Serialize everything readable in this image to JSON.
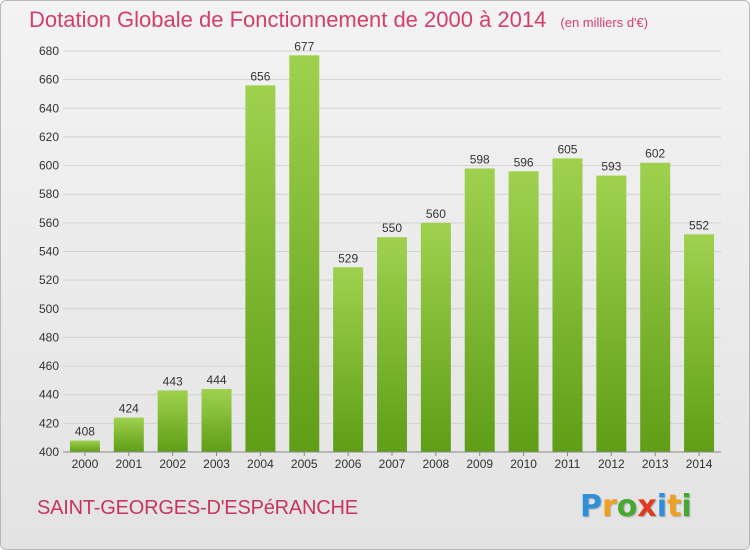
{
  "title": "Dotation Globale de Fonctionnement de 2000 à 2014",
  "unit_note": "(en milliers d'€)",
  "commune": "SAINT-GEORGES-D'ESPéRANCHE",
  "logo": {
    "text": "Proxiti",
    "letters": [
      {
        "char": "P",
        "color": "#2f8fd8"
      },
      {
        "char": "r",
        "color": "#f0a020"
      },
      {
        "char": "o",
        "color": "#46a833"
      },
      {
        "char": "x",
        "color": "#e03a1e"
      },
      {
        "char": "i",
        "color": "#2f8fd8"
      },
      {
        "char": "t",
        "color": "#f0a020"
      },
      {
        "char": "i",
        "color": "#46a833"
      }
    ]
  },
  "colors": {
    "title": "#d23f6b",
    "bar_top": "#9fd14f",
    "bar_bottom": "#5f9e16",
    "grid": "#d2d2d2"
  },
  "chart_data": {
    "type": "bar",
    "title": "Dotation Globale de Fonctionnement de 2000 à 2014",
    "subtitle": "(en milliers d'€)",
    "categories": [
      "2000",
      "2001",
      "2002",
      "2003",
      "2004",
      "2005",
      "2006",
      "2007",
      "2008",
      "2009",
      "2010",
      "2011",
      "2012",
      "2013",
      "2014"
    ],
    "values": [
      408,
      424,
      443,
      444,
      656,
      677,
      529,
      550,
      560,
      598,
      596,
      605,
      593,
      602,
      552
    ],
    "ylim": [
      400,
      680
    ],
    "yticks": [
      400,
      420,
      440,
      460,
      480,
      500,
      520,
      540,
      560,
      580,
      600,
      620,
      640,
      660,
      680
    ],
    "grid": true,
    "xlabel": "",
    "ylabel": ""
  }
}
